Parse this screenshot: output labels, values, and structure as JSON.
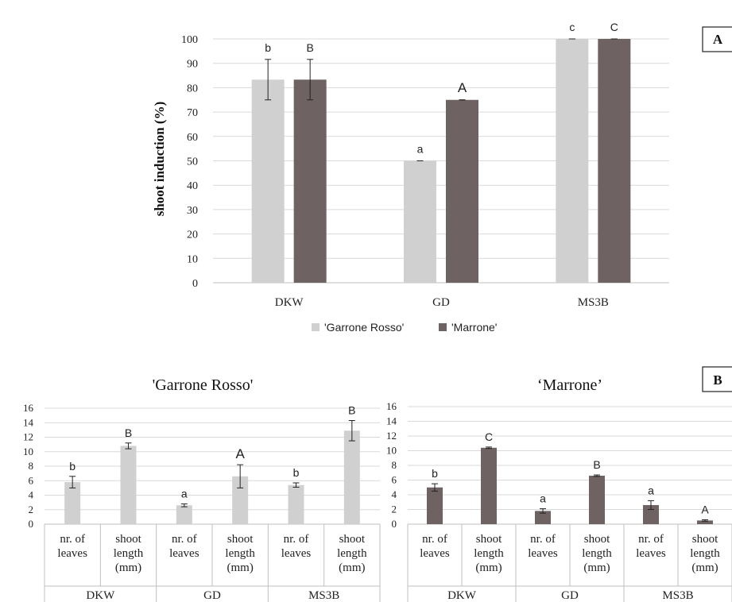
{
  "colors": {
    "garrone": "#d0d0d0",
    "marrone": "#6e6262",
    "grid": "#d9d9d9",
    "axis": "#bfbfbf",
    "text": "#222222"
  },
  "chart_data": [
    {
      "panel": "A",
      "type": "bar",
      "title": "",
      "ylabel": "shoot induction (%)",
      "ylim": [
        0,
        100
      ],
      "yticks": [
        "0",
        "10",
        "20",
        "30",
        "40",
        "50",
        "60",
        "70",
        "80",
        "90",
        "100"
      ],
      "categories": [
        "DKW",
        "GD",
        "MS3B"
      ],
      "legend": {
        "placement": "bottom",
        "entries": [
          "'Garrone Rosso'",
          "'Marrone'"
        ]
      },
      "series": [
        {
          "name": "'Garrone Rosso'",
          "values": [
            83.3,
            50,
            100
          ],
          "errors": [
            8.3,
            0,
            0
          ],
          "letters": [
            "b",
            "a",
            "c"
          ]
        },
        {
          "name": "'Marrone'",
          "values": [
            83.3,
            75,
            100
          ],
          "errors": [
            8.3,
            0,
            0
          ],
          "letters": [
            "B",
            "A",
            "C"
          ]
        }
      ]
    },
    {
      "panel": "B",
      "type": "bar",
      "title": "'Garrone Rosso'",
      "ylim": [
        0,
        16
      ],
      "yticks": [
        "0",
        "2",
        "4",
        "6",
        "8",
        "10",
        "12",
        "14",
        "16"
      ],
      "groups": [
        "DKW",
        "GD",
        "MS3B"
      ],
      "measures": [
        [
          "nr. of",
          "leaves"
        ],
        [
          "shoot",
          "length",
          "(mm)"
        ]
      ],
      "values": [
        5.8,
        10.8,
        2.6,
        6.6,
        5.4,
        12.9
      ],
      "errors": [
        0.8,
        0.4,
        0.2,
        1.6,
        0.3,
        1.4
      ],
      "letters": [
        "b",
        "B",
        "a",
        "A",
        "b",
        "B"
      ]
    },
    {
      "panel": "B",
      "type": "bar",
      "title": "‘Marrone’",
      "ylim": [
        0,
        16
      ],
      "yticks": [
        "0",
        "2",
        "4",
        "6",
        "8",
        "10",
        "12",
        "14",
        "16"
      ],
      "groups": [
        "DKW",
        "GD",
        "MS3B"
      ],
      "measures": [
        [
          "nr. of",
          "leaves"
        ],
        [
          "shoot",
          "length",
          "(mm)"
        ]
      ],
      "values": [
        5.0,
        10.4,
        1.8,
        6.6,
        2.6,
        0.5
      ],
      "errors": [
        0.5,
        0.1,
        0.3,
        0.1,
        0.6,
        0.1
      ],
      "letters": [
        "b",
        "C",
        "a",
        "B",
        "a",
        "A"
      ]
    }
  ],
  "panel_labels": [
    "A",
    "B"
  ]
}
